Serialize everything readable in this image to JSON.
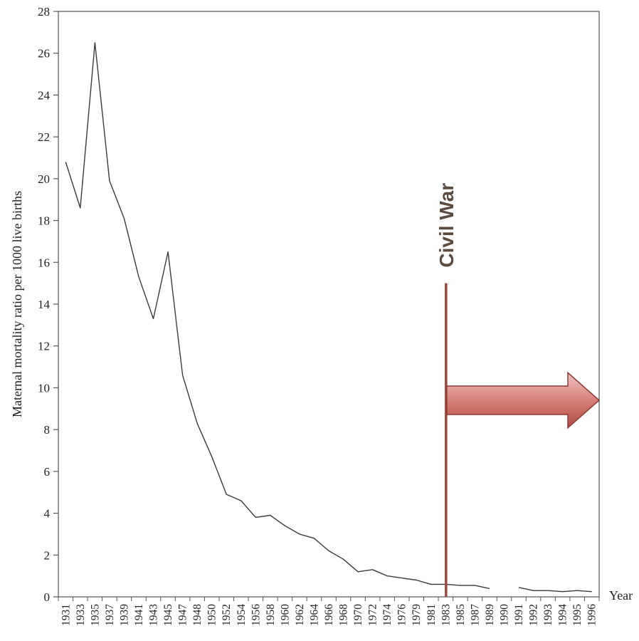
{
  "chart_data": {
    "type": "line",
    "title": "",
    "ylabel": "Maternal mortality ratio per 1000 live births",
    "xlabel": "Year",
    "ylim": [
      0,
      28
    ],
    "yticks": [
      0,
      2,
      4,
      6,
      8,
      10,
      12,
      14,
      16,
      18,
      20,
      22,
      24,
      26,
      28
    ],
    "categories": [
      "1931",
      "1933",
      "1935",
      "1937",
      "1939",
      "1941",
      "1943",
      "1945",
      "1947",
      "1948",
      "1950",
      "1952",
      "1954",
      "1956",
      "1958",
      "1960",
      "1962",
      "1964",
      "1966",
      "1968",
      "1970",
      "1972",
      "1974",
      "1976",
      "1979",
      "1981",
      "1983",
      "1985",
      "1987",
      "1989",
      "1990",
      "1991",
      "1992",
      "1993",
      "1994",
      "1995",
      "1996"
    ],
    "series": [
      {
        "values": [
          20.8,
          18.6,
          26.5,
          19.9,
          18.1,
          15.3,
          13.3,
          16.5,
          10.6,
          8.3,
          6.7,
          4.9,
          4.6,
          3.8,
          3.9,
          3.4,
          3.0,
          2.8,
          2.2,
          1.8,
          1.2,
          1.3,
          1.0,
          0.9,
          0.8,
          0.6,
          0.6,
          0.55,
          0.55,
          0.4,
          null,
          0.45,
          0.3,
          0.3,
          0.25,
          0.3,
          0.25
        ]
      }
    ],
    "grid": false,
    "legend": "none",
    "annotations": [
      {
        "text": "Civil War",
        "x": "1983",
        "y_top": 15,
        "color": "#a0463c",
        "arrow": "right"
      }
    ],
    "colors": {
      "line": "#3a3a3a",
      "axis": "#555555",
      "annotation_line": "#a0463c",
      "annotation_text": "#5b4a3f",
      "arrow_fill_light": "#f0c4c0",
      "arrow_fill_dark": "#b04a44",
      "arrow_stroke": "#8e3a35"
    }
  }
}
